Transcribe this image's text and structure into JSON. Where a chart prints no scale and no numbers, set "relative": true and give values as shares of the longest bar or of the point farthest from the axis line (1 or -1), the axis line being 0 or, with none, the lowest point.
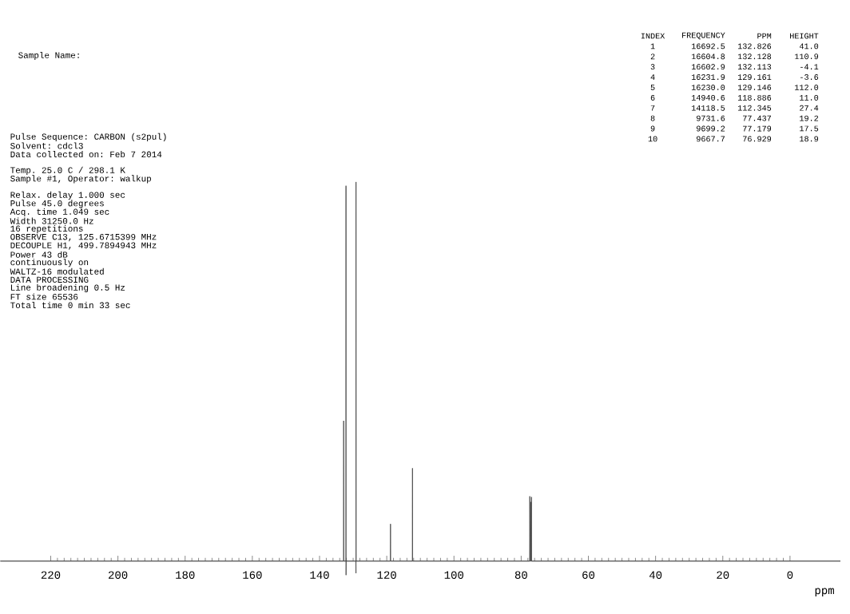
{
  "chart_data": {
    "type": "line",
    "xlabel": "ppm",
    "xlim": [
      235,
      -15
    ],
    "xticks": [
      220,
      200,
      180,
      160,
      140,
      120,
      100,
      80,
      60,
      40,
      20,
      0
    ],
    "relative": true,
    "tick_labels": "x",
    "series": [
      {
        "color": "#404040",
        "x": [
          235,
          132.876,
          132.826,
          132.776,
          132.16,
          132.128,
          132.113,
          132.08,
          129.19,
          129.161,
          129.146,
          129.11,
          118.936,
          118.886,
          118.836,
          112.395,
          112.345,
          112.295,
          77.49,
          77.437,
          77.31,
          77.179,
          77.05,
          76.929,
          76.88,
          -15
        ],
        "values": [
          0,
          0,
          0.37,
          0,
          0,
          0.99,
          -0.037,
          0,
          0,
          -0.032,
          1,
          0,
          0,
          0.098,
          0,
          0,
          0.245,
          0,
          0,
          0.171,
          0,
          0.156,
          0,
          0.169,
          0,
          0
        ]
      }
    ],
    "annotations": [
      "Sample Name:",
      "Pulse Sequence: CARBON (s2pul)",
      "Solvent: cdcl3",
      "Data collected on: Feb  7 2014",
      "Temp. 25.0 C / 298.1 K",
      "Sample #1, Operator: walkup",
      "Relax. delay 1.000 sec",
      "Pulse 45.0 degrees",
      "Acq. time 1.049 sec",
      "Width 31250.0 Hz",
      "16 repetitions",
      "OBSERVE  C13, 125.6715399 MHz",
      "DECOUPLE  H1, 499.7894943 MHz",
      "Power 43 dB",
      "continuously on",
      "WALTZ-16 modulated",
      "DATA PROCESSING",
      "Line broadening 0.5 Hz",
      "FT size 65536",
      "Total time 0 min 33 sec",
      "INDEX",
      "FREQUENCY",
      "PPM",
      "HEIGHT",
      "1",
      "16692.5",
      "132.826",
      "41.0",
      "2",
      "16604.8",
      "132.128",
      "110.9",
      "3",
      "16602.9",
      "132.113",
      "-4.1",
      "4",
      "16231.9",
      "129.161",
      "-3.6",
      "5",
      "16230.0",
      "129.146",
      "112.0",
      "6",
      "14940.6",
      "118.886",
      "11.0",
      "7",
      "14118.5",
      "112.345",
      "27.4",
      "8",
      "9731.6",
      "77.437",
      "19.2",
      "9",
      "9699.2",
      "77.179",
      "17.5",
      "10",
      "9667.7",
      "76.929",
      "18.9"
    ]
  }
}
